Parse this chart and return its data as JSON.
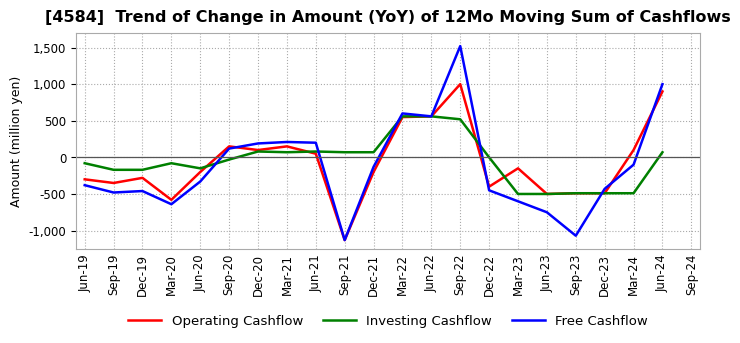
{
  "title": "[4584]  Trend of Change in Amount (YoY) of 12Mo Moving Sum of Cashflows",
  "ylabel": "Amount (million yen)",
  "ylim": [
    -1250,
    1700
  ],
  "yticks": [
    -1000,
    -500,
    0,
    500,
    1000,
    1500
  ],
  "x_labels": [
    "Jun-19",
    "Sep-19",
    "Dec-19",
    "Mar-20",
    "Jun-20",
    "Sep-20",
    "Dec-20",
    "Mar-21",
    "Jun-21",
    "Sep-21",
    "Dec-21",
    "Mar-22",
    "Jun-22",
    "Sep-22",
    "Dec-22",
    "Mar-23",
    "Jun-23",
    "Sep-23",
    "Dec-23",
    "Mar-24",
    "Jun-24",
    "Sep-24"
  ],
  "operating": [
    -300,
    -350,
    -280,
    -580,
    -200,
    150,
    100,
    150,
    50,
    -1130,
    -200,
    550,
    560,
    1000,
    -400,
    -150,
    -500,
    -490,
    -490,
    100,
    900,
    null
  ],
  "investing": [
    -80,
    -170,
    -170,
    -80,
    -150,
    -30,
    80,
    70,
    80,
    70,
    70,
    560,
    560,
    520,
    0,
    -500,
    -500,
    -490,
    -490,
    -490,
    70,
    null
  ],
  "free": [
    -380,
    -480,
    -460,
    -640,
    -330,
    120,
    190,
    210,
    200,
    -1130,
    -130,
    600,
    560,
    1520,
    -450,
    -600,
    -750,
    -1070,
    -430,
    -100,
    1000,
    null
  ],
  "operating_color": "#FF0000",
  "investing_color": "#008000",
  "free_color": "#0000FF",
  "background_color": "#FFFFFF",
  "grid_color": "#AAAAAA",
  "title_fontsize": 11.5,
  "label_fontsize": 9,
  "tick_fontsize": 8.5,
  "legend_fontsize": 9.5
}
